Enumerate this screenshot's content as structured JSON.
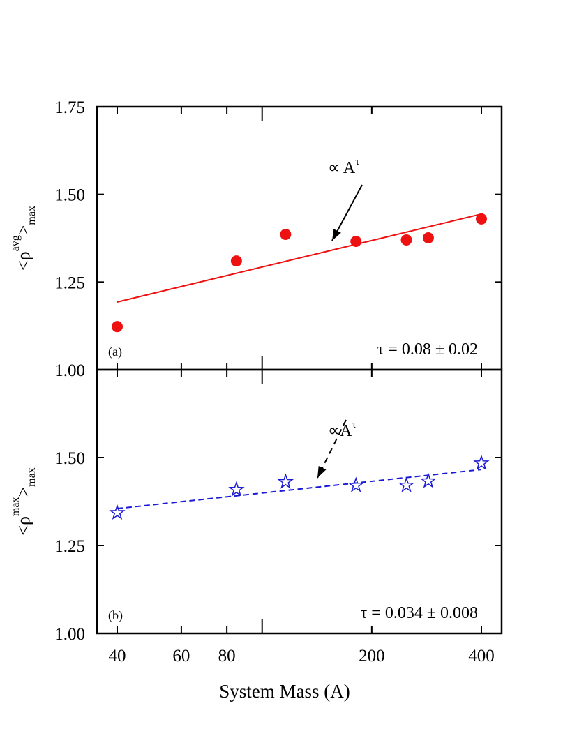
{
  "chart_data": [
    {
      "type": "scatter",
      "panel_label": "(a)",
      "annotation": {
        "main": "∝ A",
        "sup": "τ"
      },
      "fit_text": "τ = 0.08 ± 0.02",
      "ylabel": {
        "open": "<ρ",
        "sup": "avg",
        "close": ">",
        "sub": "max"
      },
      "xscale": "log",
      "xlim": [
        35.2,
        454.6
      ],
      "ylim": [
        1.0,
        1.75
      ],
      "yticks": [
        {
          "value": 1.0,
          "label": "1.00"
        },
        {
          "value": 1.25,
          "label": "1.25"
        },
        {
          "value": 1.5,
          "label": "1.50"
        },
        {
          "value": 1.75,
          "label": "1.75"
        }
      ],
      "series": [
        {
          "marker": "circle",
          "color": "#ee1111",
          "x": [
            40,
            85,
            116,
            181,
            249,
            286,
            400
          ],
          "values": [
            1.123,
            1.31,
            1.386,
            1.366,
            1.37,
            1.376,
            1.43
          ]
        },
        {
          "marker": "line",
          "dash": false,
          "color": "#ee1111",
          "x": [
            40,
            400
          ],
          "values": [
            1.193,
            1.444
          ]
        }
      ]
    },
    {
      "type": "scatter",
      "panel_label": "(b)",
      "annotation": {
        "main": "∝A",
        "sup": "τ"
      },
      "fit_text": "τ = 0.034 ± 0.008",
      "ylabel": {
        "open": "<ρ",
        "sup": "max",
        "close": ">",
        "sub": "max"
      },
      "xlabel": "System Mass (A)",
      "xscale": "log",
      "xlim": [
        35.2,
        454.6
      ],
      "ylim": [
        1.0,
        1.75
      ],
      "xticks": [
        40,
        60,
        80,
        200,
        400
      ],
      "xticks_unlabeled": [
        100
      ],
      "yticks": [
        {
          "value": 1.0,
          "label": "1.00"
        },
        {
          "value": 1.25,
          "label": "1.25"
        },
        {
          "value": 1.5,
          "label": "1.50"
        }
      ],
      "series": [
        {
          "marker": "star",
          "color": "#1a1ad6",
          "x": [
            40,
            85,
            116,
            181,
            249,
            286,
            400
          ],
          "values": [
            1.343,
            1.409,
            1.431,
            1.421,
            1.421,
            1.433,
            1.484
          ]
        },
        {
          "marker": "line",
          "dash": true,
          "color": "#1a1ad6",
          "x": [
            40,
            400
          ],
          "values": [
            1.355,
            1.466
          ]
        }
      ]
    }
  ]
}
